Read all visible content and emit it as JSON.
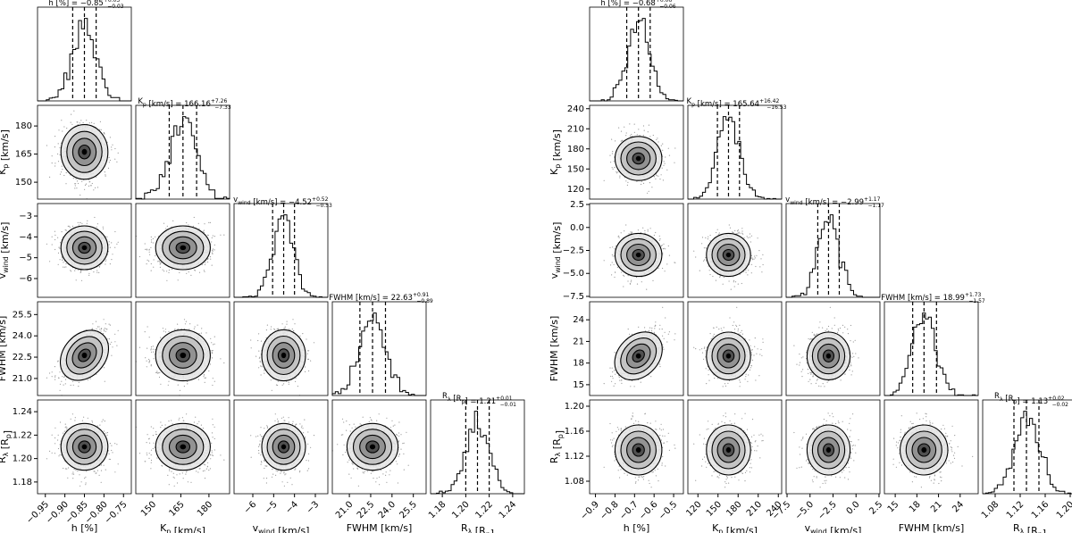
{
  "chart_data": [
    {
      "type": "corner",
      "parameters": [
        {
          "label": "h [%]",
          "title": "h [%] = −0.85",
          "sup": "+0.03",
          "sub": "−0.03",
          "median": -0.85,
          "err_lo": 0.03,
          "err_hi": 0.03,
          "ticks": [
            -0.95,
            -0.9,
            -0.85,
            -0.8,
            -0.75
          ],
          "range": [
            -0.97,
            -0.73
          ]
        },
        {
          "label": "K_p [km/s]",
          "title": "K_p [km/s] = 166.16",
          "sup": "+7.26",
          "sub": "−7.33",
          "median": 166.16,
          "err_lo": 7.33,
          "err_hi": 7.26,
          "ticks": [
            150,
            165,
            180
          ],
          "range": [
            141,
            191
          ]
        },
        {
          "label": "v_wind [km/s]",
          "title": "v_wind [km/s] = −4.52",
          "sup": "+0.52",
          "sub": "−0.53",
          "median": -4.52,
          "err_lo": 0.53,
          "err_hi": 0.52,
          "ticks": [
            -6,
            -5,
            -4,
            -3
          ],
          "range": [
            -6.9,
            -2.4
          ]
        },
        {
          "label": "FWHM [km/s]",
          "title": "FWHM [km/s] = 22.63",
          "sup": "+0.91",
          "sub": "−0.89",
          "median": 22.63,
          "err_lo": 0.89,
          "err_hi": 0.91,
          "ticks": [
            21.0,
            22.5,
            24.0,
            25.5
          ],
          "range": [
            19.8,
            26.4
          ]
        },
        {
          "label": "R_λ [R_p]",
          "title": "R_λ [R_p] = 1.21",
          "sup": "+0.01",
          "sub": "−0.01",
          "median": 1.21,
          "err_lo": 0.01,
          "err_hi": 0.01,
          "ticks": [
            1.18,
            1.2,
            1.22,
            1.24
          ],
          "range": [
            1.17,
            1.25
          ]
        }
      ],
      "correlations": [
        [
          0,
          3,
          0.6
        ]
      ]
    },
    {
      "type": "corner",
      "parameters": [
        {
          "label": "h [%]",
          "title": "h [%] = −0.68",
          "sup": "+0.06",
          "sub": "−0.06",
          "median": -0.68,
          "err_lo": 0.06,
          "err_hi": 0.06,
          "ticks": [
            -0.9,
            -0.8,
            -0.7,
            -0.6,
            -0.5
          ],
          "range": [
            -0.93,
            -0.45
          ]
        },
        {
          "label": "K_p [km/s]",
          "title": "K_p [km/s] = 165.64",
          "sup": "+16.42",
          "sub": "−16.53",
          "median": 165.64,
          "err_lo": 16.53,
          "err_hi": 16.42,
          "ticks": [
            120,
            150,
            180,
            210,
            240
          ],
          "range": [
            105,
            245
          ]
        },
        {
          "label": "v_wind [km/s]",
          "title": "v_wind [km/s] = −2.99",
          "sup": "+1.17",
          "sub": "−1.17",
          "median": -2.99,
          "err_lo": 1.17,
          "err_hi": 1.17,
          "ticks": [
            -7.5,
            -5.0,
            -2.5,
            0.0,
            2.5
          ],
          "range": [
            -7.6,
            2.6
          ]
        },
        {
          "label": "FWHM [km/s]",
          "title": "FWHM [km/s] = 18.99",
          "sup": "+1.73",
          "sub": "−1.57",
          "median": 18.99,
          "err_lo": 1.57,
          "err_hi": 1.73,
          "ticks": [
            15,
            18,
            21,
            24
          ],
          "range": [
            13.5,
            26.5
          ]
        },
        {
          "label": "R_λ [R_p]",
          "title": "R_λ [R_p] = 1.13",
          "sup": "+0.02",
          "sub": "−0.02",
          "median": 1.13,
          "err_lo": 0.02,
          "err_hi": 0.02,
          "ticks": [
            1.08,
            1.12,
            1.16,
            1.2
          ],
          "range": [
            1.06,
            1.21
          ]
        }
      ],
      "correlations": [
        [
          0,
          3,
          0.5
        ]
      ]
    }
  ]
}
